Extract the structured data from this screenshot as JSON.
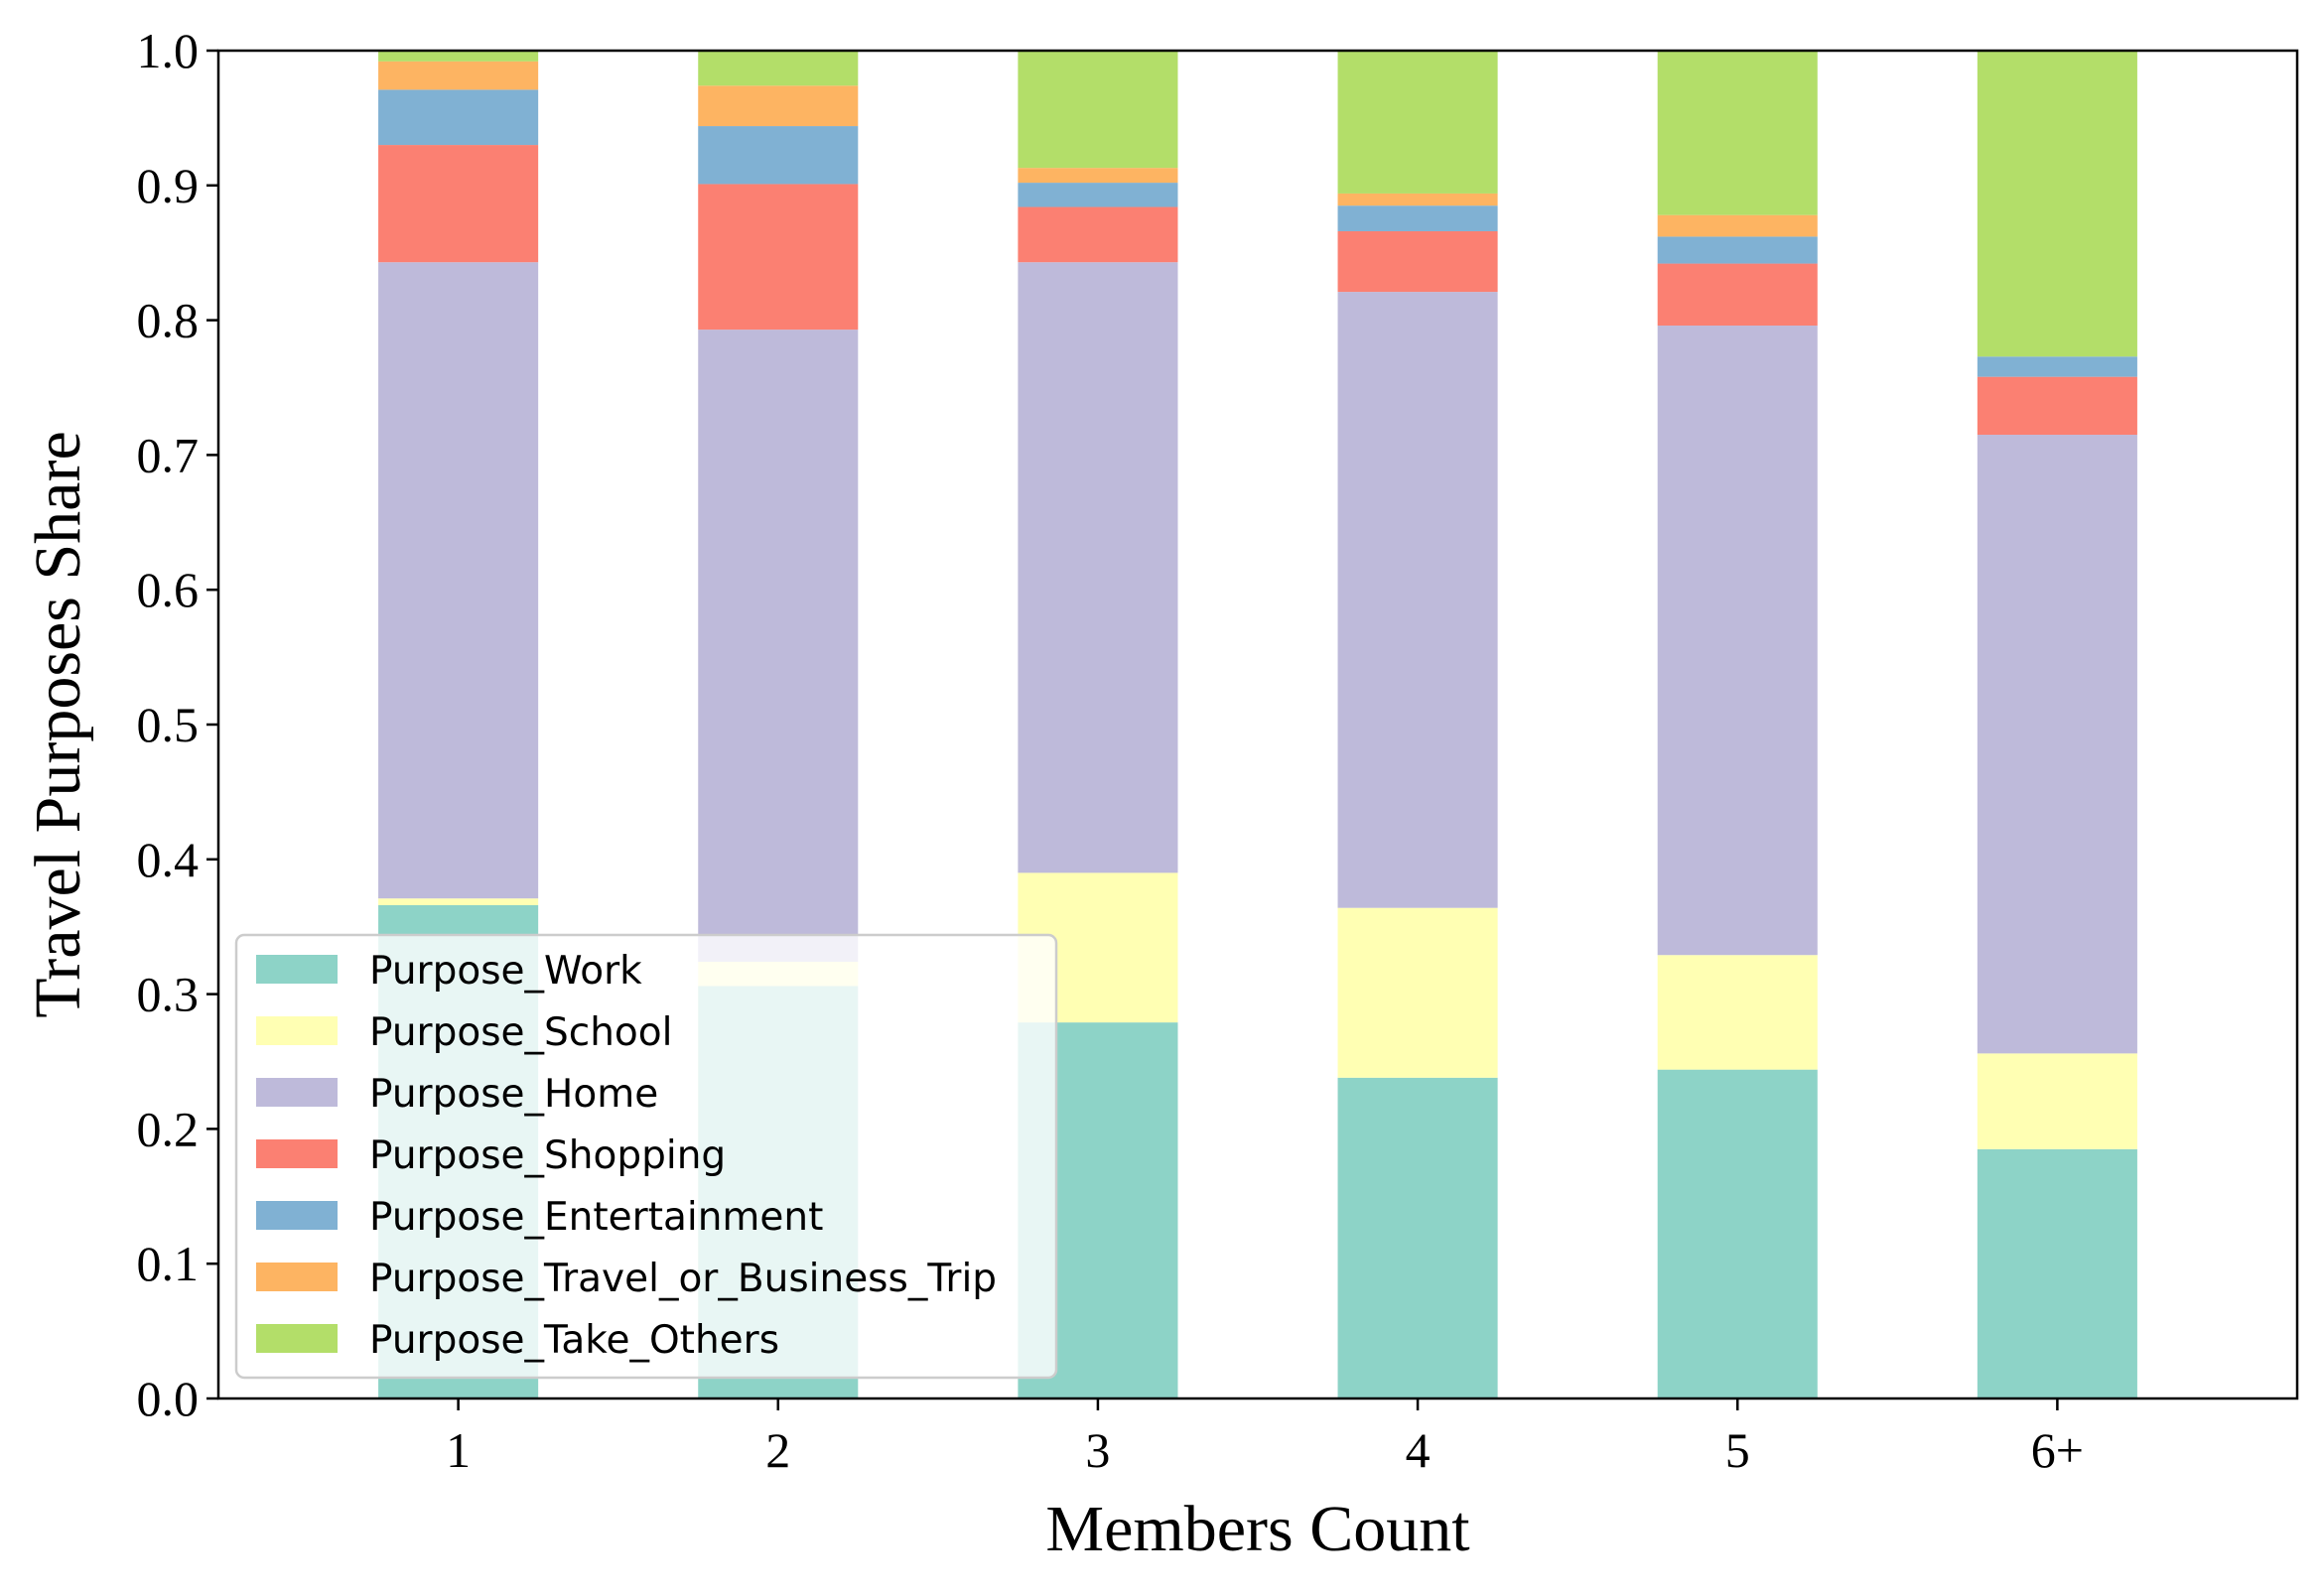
{
  "chart_data": {
    "type": "bar",
    "stacked": true,
    "categories": [
      "1",
      "2",
      "3",
      "4",
      "5",
      "6+"
    ],
    "xlabel": "Members Count",
    "ylabel": "Travel Purposes Share",
    "ylim": [
      0,
      1
    ],
    "yticks": [
      "0.0",
      "0.1",
      "0.2",
      "0.3",
      "0.4",
      "0.5",
      "0.6",
      "0.7",
      "0.8",
      "0.9",
      "1.0"
    ],
    "legend_position": "lower-left",
    "grid": false,
    "series": [
      {
        "name": "Purpose_Work",
        "color": "#8dd3c7",
        "values": [
          0.366,
          0.306,
          0.279,
          0.238,
          0.244,
          0.185
        ]
      },
      {
        "name": "Purpose_School",
        "color": "#ffffb3",
        "values": [
          0.005,
          0.018,
          0.111,
          0.126,
          0.085,
          0.071
        ]
      },
      {
        "name": "Purpose_Home",
        "color": "#bebada",
        "values": [
          0.472,
          0.469,
          0.453,
          0.457,
          0.467,
          0.459
        ]
      },
      {
        "name": "Purpose_Shopping",
        "color": "#fb8072",
        "values": [
          0.087,
          0.108,
          0.041,
          0.045,
          0.046,
          0.043
        ]
      },
      {
        "name": "Purpose_Entertainment",
        "color": "#80b1d3",
        "values": [
          0.041,
          0.043,
          0.018,
          0.019,
          0.02,
          0.015
        ]
      },
      {
        "name": "Purpose_Travel_or_Business_Trip",
        "color": "#fdb462",
        "values": [
          0.021,
          0.03,
          0.011,
          0.009,
          0.016,
          0.0
        ]
      },
      {
        "name": "Purpose_Take_Others",
        "color": "#b3de69",
        "values": [
          0.008,
          0.026,
          0.087,
          0.106,
          0.122,
          0.227
        ]
      }
    ]
  }
}
